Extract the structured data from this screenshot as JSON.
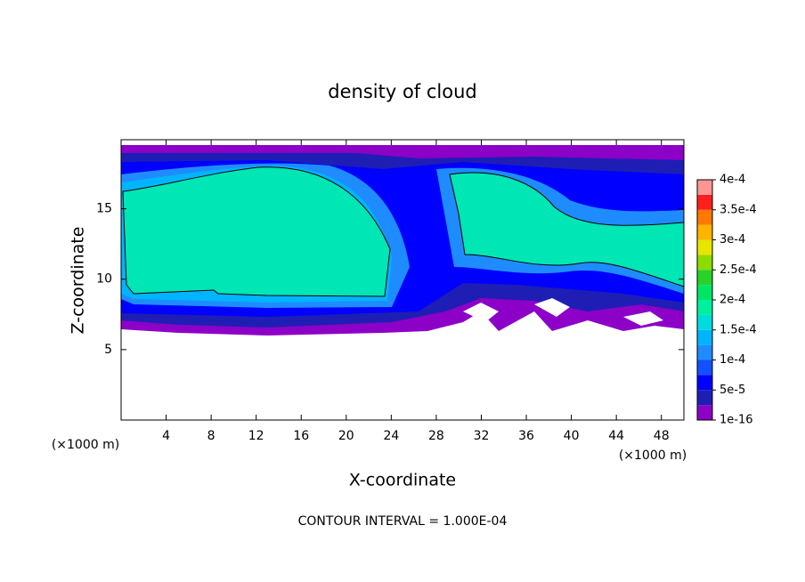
{
  "chart_data": {
    "type": "contour",
    "title": "density of cloud",
    "x_label": "X-coordinate",
    "y_label": "Z-coordinate",
    "x_unit_labels": [
      "(×1000 m)",
      "(×1000 m)"
    ],
    "footer": "CONTOUR INTERVAL = 1.000E-04",
    "xlim": [
      0,
      50
    ],
    "xticks": [
      4,
      8,
      12,
      16,
      20,
      24,
      28,
      32,
      36,
      40,
      44,
      48
    ],
    "ylim": [
      0,
      19.9
    ],
    "yticks": [
      5,
      10,
      15
    ],
    "colorbar": {
      "ticks": [
        {
          "value": 1e-16,
          "label": "1e-16"
        },
        {
          "value": 5e-05,
          "label": "5e-5"
        },
        {
          "value": 0.0001,
          "label": "1e-4"
        },
        {
          "value": 0.00015,
          "label": "1.5e-4"
        },
        {
          "value": 0.0002,
          "label": "2e-4"
        },
        {
          "value": 0.00025,
          "label": "2.5e-4"
        },
        {
          "value": 0.0003,
          "label": "3e-4"
        },
        {
          "value": 0.00035,
          "label": "3.5e-4"
        },
        {
          "value": 0.0004,
          "label": "4e-4"
        }
      ],
      "colors": [
        "#8c00c8",
        "#1e1eb4",
        "#0000ff",
        "#1450ff",
        "#1e8cff",
        "#00b4ff",
        "#00dcdc",
        "#00f0a0",
        "#00e664",
        "#28d228",
        "#8cdc00",
        "#e6e600",
        "#ffb400",
        "#ff7800",
        "#ff1e1e",
        "#ff9696"
      ]
    }
  }
}
